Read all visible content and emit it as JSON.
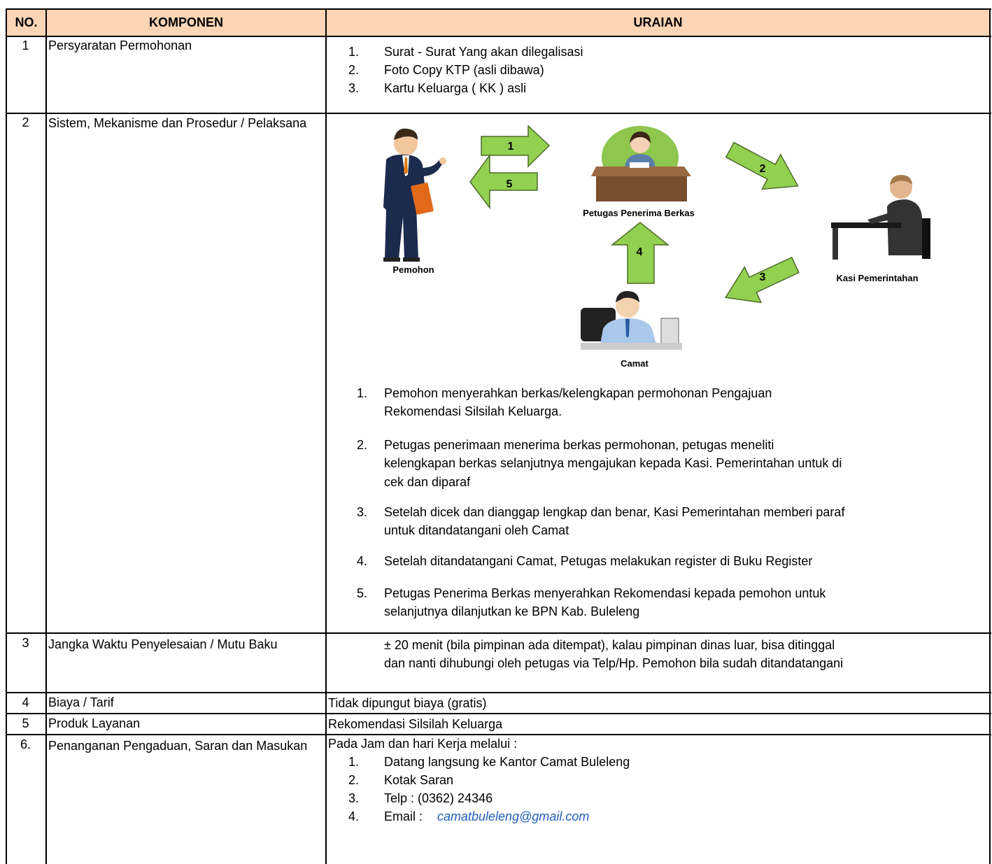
{
  "header": {
    "no": "NO.",
    "component": "KOMPONEN",
    "description": "URAIAN"
  },
  "rows": [
    {
      "no": "1",
      "component": "Persyaratan Permohonan",
      "items": [
        {
          "marker": "1.",
          "text": "Surat  -  Surat Yang akan dilegalisasi"
        },
        {
          "marker": "2.",
          "text": "Foto Copy KTP (asli dibawa)"
        },
        {
          "marker": "3.",
          "text": "Kartu Keluarga ( KK ) asli"
        }
      ]
    },
    {
      "no": "2",
      "component": "Sistem, Mekanisme dan Prosedur / Pelaksana",
      "diagram": {
        "nodes": [
          "Pemohon",
          "Petugas Penerima Berkas",
          "Kasi  Pemerintahan",
          "Camat"
        ],
        "arrows": [
          "1",
          "5",
          "2",
          "3",
          "4"
        ]
      },
      "steps": [
        {
          "marker": "1.",
          "lines": [
            "Pemohon menyerahkan berkas/kelengkapan permohonan Pengajuan",
            "Rekomendasi Silsilah Keluarga."
          ]
        },
        {
          "marker": "2.",
          "lines": [
            "Petugas penerimaan menerima berkas permohonan, petugas meneliti",
            "kelengkapan berkas selanjutnya mengajukan kepada Kasi. Pemerintahan untuk di",
            "cek dan diparaf"
          ]
        },
        {
          "marker": "3.",
          "lines": [
            "Setelah dicek dan dianggap lengkap dan benar, Kasi Pemerintahan memberi paraf",
            "untuk ditandatangani oleh Camat"
          ]
        },
        {
          "marker": "4.",
          "lines": [
            "Setelah ditandatangani Camat, Petugas melakukan register di Buku Register"
          ]
        },
        {
          "marker": "5.",
          "lines": [
            "Petugas Penerima Berkas menyerahkan Rekomendasi kepada pemohon untuk",
            "selanjutnya dilanjutkan ke BPN Kab. Buleleng"
          ]
        }
      ]
    },
    {
      "no": "3",
      "component": "Jangka Waktu Penyelesaian / Mutu Baku",
      "lines": [
        "± 20 menit (bila pimpinan ada ditempat), kalau pimpinan dinas luar, bisa ditinggal",
        "dan nanti dihubungi oleh petugas via Telp/Hp. Pemohon bila sudah ditandatangani"
      ]
    },
    {
      "no": "4",
      "component": "Biaya / Tarif",
      "text": "Tidak dipungut biaya (gratis)"
    },
    {
      "no": "5",
      "component": "Produk Layanan",
      "text": "Rekomendasi Silsilah Keluarga"
    },
    {
      "no": "6.",
      "component": "Penanganan Pengaduan, Saran dan Masukan",
      "intro": "Pada Jam dan hari Kerja melalui :",
      "items": [
        {
          "marker": "1.",
          "text": "Datang langsung ke Kantor Camat Buleleng"
        },
        {
          "marker": "2.",
          "text": "Kotak Saran"
        },
        {
          "marker": "3.",
          "text": "Telp : (0362) 24346"
        },
        {
          "marker": "4.",
          "text": "Email :",
          "link": "camatbuleleng@gmail.com"
        }
      ]
    }
  ]
}
